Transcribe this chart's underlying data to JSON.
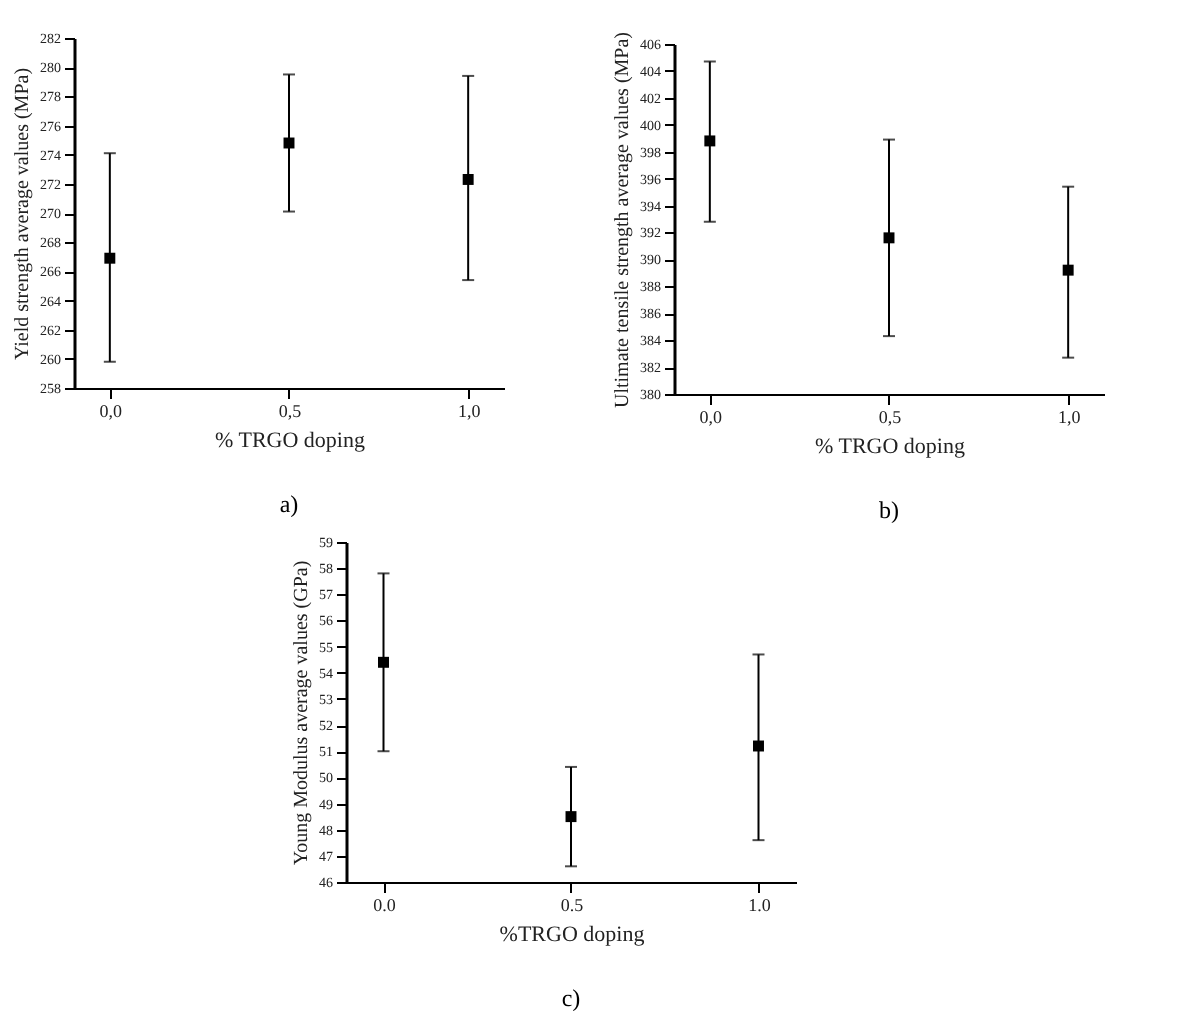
{
  "chart_data": [
    {
      "type": "scatter",
      "xlabel": "% TRGO doping",
      "ylabel": "Yield strength average values (MPa)",
      "x": [
        0,
        0.5,
        1
      ],
      "xlim": [
        -0.1,
        1.1
      ],
      "xticks": [
        {
          "value": 0,
          "label": "0,0"
        },
        {
          "value": 0.5,
          "label": "0,5"
        },
        {
          "value": 1,
          "label": "1,0"
        }
      ],
      "ylim": [
        258,
        282
      ],
      "yticks": [
        258,
        260,
        262,
        264,
        266,
        268,
        270,
        272,
        274,
        276,
        278,
        280,
        282
      ],
      "marker": "square",
      "series": [
        {
          "color": "#000000",
          "values": [
            266.9,
            274.8,
            272.3
          ],
          "errors": [
            [
              259.8,
              274.1
            ],
            [
              270.1,
              279.5
            ],
            [
              265.4,
              279.4
            ]
          ]
        }
      ],
      "annotations": [
        "a)"
      ]
    },
    {
      "type": "scatter",
      "xlabel": "% TRGO doping",
      "ylabel": "Ultimate tensile strength average values (MPa)",
      "x": [
        0,
        0.5,
        1
      ],
      "xlim": [
        -0.1,
        1.1
      ],
      "xticks": [
        {
          "value": 0,
          "label": "0,0"
        },
        {
          "value": 0.5,
          "label": "0,5"
        },
        {
          "value": 1,
          "label": "1,0"
        }
      ],
      "ylim": [
        380,
        406
      ],
      "yticks": [
        380,
        382,
        384,
        386,
        388,
        390,
        392,
        394,
        396,
        398,
        400,
        402,
        404,
        406
      ],
      "marker": "square",
      "series": [
        {
          "color": "#000000",
          "values": [
            398.8,
            391.6,
            389.2
          ],
          "errors": [
            [
              392.8,
              404.7
            ],
            [
              384.3,
              398.9
            ],
            [
              382.7,
              395.4
            ]
          ]
        }
      ],
      "annotations": [
        "b)"
      ]
    },
    {
      "type": "scatter",
      "xlabel": "%TRGO doping",
      "ylabel": "Young Modulus average values (GPa)",
      "x": [
        0,
        0.5,
        1
      ],
      "xlim": [
        -0.1,
        1.1
      ],
      "xticks": [
        {
          "value": 0,
          "label": "0.0"
        },
        {
          "value": 0.5,
          "label": "0.5"
        },
        {
          "value": 1,
          "label": "1.0"
        }
      ],
      "ylim": [
        46,
        59
      ],
      "yticks": [
        46,
        47,
        48,
        49,
        50,
        51,
        52,
        53,
        54,
        55,
        56,
        57,
        58,
        59
      ],
      "marker": "square",
      "series": [
        {
          "color": "#000000",
          "values": [
            54.4,
            48.5,
            51.2
          ],
          "errors": [
            [
              51.0,
              57.8
            ],
            [
              46.6,
              50.4
            ],
            [
              47.6,
              54.7
            ]
          ]
        }
      ],
      "annotations": [
        "c)"
      ]
    }
  ]
}
